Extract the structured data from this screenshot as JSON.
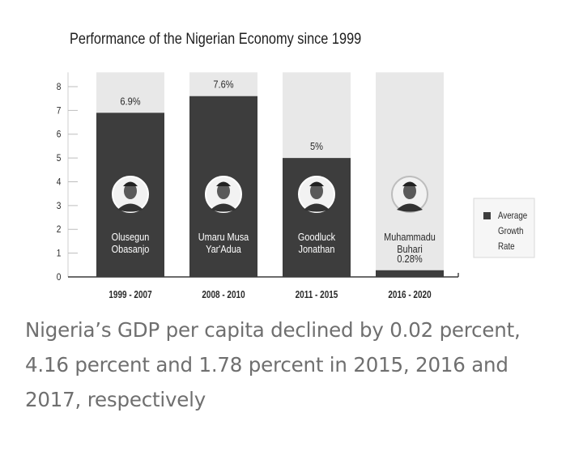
{
  "chart_data": {
    "type": "bar",
    "title": "Performance of the Nigerian Economy since 1999",
    "categories": [
      "1999 - 2007",
      "2008 - 2010",
      "2011 - 2015",
      "2016 - 2020"
    ],
    "values": [
      6.9,
      7.6,
      5,
      0.28
    ],
    "value_labels": [
      "6.9%",
      "7.6%",
      "5%",
      "0.28%"
    ],
    "bar_people": [
      [
        "Olusegun",
        "Obasanjo"
      ],
      [
        "Umaru Musa",
        "Yar'Adua"
      ],
      [
        "Goodluck",
        "Jonathan"
      ],
      [
        "Muhammadu",
        "Buhari"
      ]
    ],
    "yticks": [
      0,
      1,
      2,
      3,
      4,
      5,
      6,
      7,
      8
    ],
    "ylim": [
      0,
      8.6
    ],
    "xlabel": "",
    "ylabel": "",
    "grid": false,
    "legend": {
      "position": "right",
      "entries": [
        "Average Growth Rate"
      ]
    },
    "colors": {
      "bar": "#3d3d3d",
      "bar_background": "#e8e8e8",
      "text": "#2a2a2a",
      "label_on_bar": "#ffffff"
    }
  },
  "caption": "Nigeria’s GDP per capita declined by 0.02 percent, 4.16 percent and 1.78 percent in 2015, 2016 and 2017, respectively"
}
